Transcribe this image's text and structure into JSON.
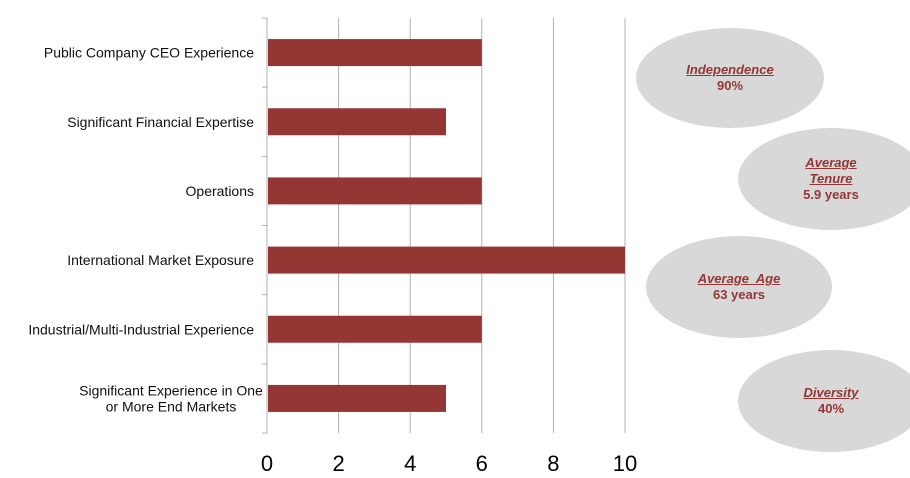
{
  "chart_data": {
    "type": "bar",
    "orientation": "horizontal",
    "categories": [
      "Public Company CEO Experience",
      "Significant Financial Expertise",
      "Operations",
      "International Market Exposure",
      "Industrial/Multi-Industrial Experience",
      "Significant Experience in One or More End Markets"
    ],
    "values": [
      6,
      5,
      6,
      10,
      6,
      5
    ],
    "xlim": [
      0,
      10
    ],
    "xticks": [
      "0",
      "2",
      "4",
      "6",
      "8",
      "10"
    ],
    "title": "",
    "xlabel": "",
    "ylabel": "",
    "grid": true,
    "bar_color": "#943634"
  },
  "stats": [
    {
      "title": "Independence",
      "value": "90%"
    },
    {
      "title": "Average Tenure",
      "value": "5.9 years"
    },
    {
      "title": "Average  Age",
      "value": "63 years"
    },
    {
      "title": "Diversity",
      "value": "40%"
    }
  ],
  "colors": {
    "accent": "#943634",
    "bubble": "#d8d8d8"
  }
}
